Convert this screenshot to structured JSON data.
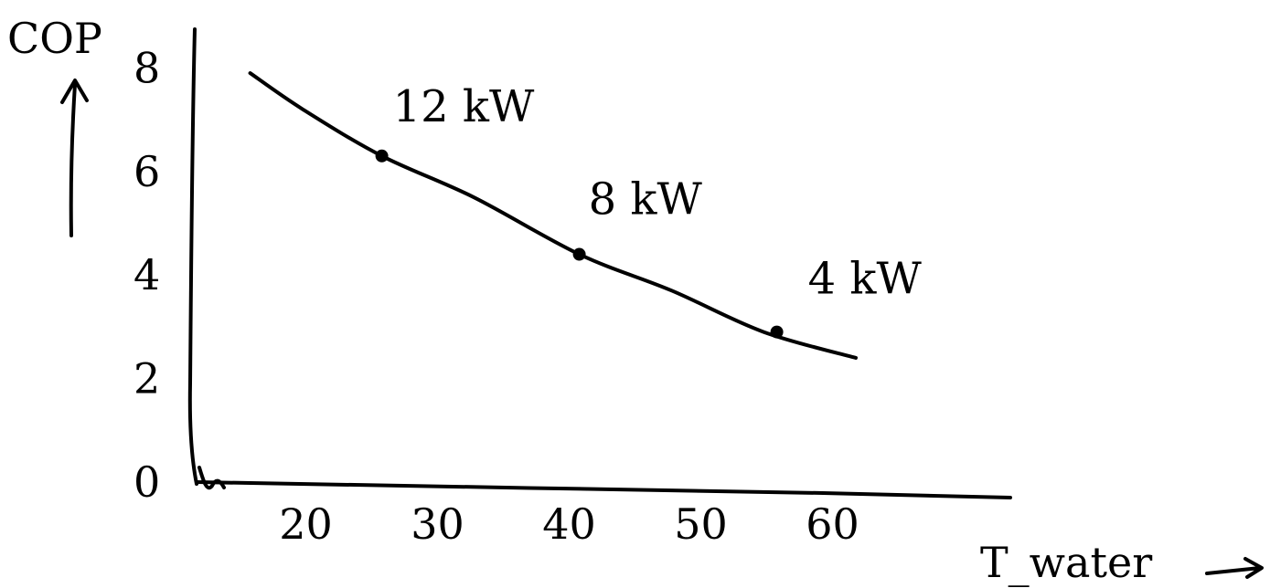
{
  "chart_data": {
    "type": "line",
    "title": "",
    "ylabel": "COP",
    "xlabel": "T_water",
    "ylim": [
      0,
      8
    ],
    "xlim": [
      12,
      70
    ],
    "yticks": [
      "0",
      "2",
      "4",
      "6",
      "8"
    ],
    "xticks": [
      "20",
      "30",
      "40",
      "50",
      "60"
    ],
    "series": [
      {
        "x": [
          16,
          20,
          26,
          33,
          41,
          48,
          55,
          62
        ],
        "y": [
          7.9,
          7.2,
          6.3,
          5.5,
          4.4,
          3.7,
          2.9,
          2.4
        ]
      }
    ],
    "points": [
      {
        "x": 26,
        "y": 6.3,
        "label": "12 kW"
      },
      {
        "x": 41,
        "y": 4.4,
        "label": "8 kW"
      },
      {
        "x": 56,
        "y": 2.9,
        "label": "4 kW"
      }
    ],
    "grid": false,
    "legend": "none"
  }
}
